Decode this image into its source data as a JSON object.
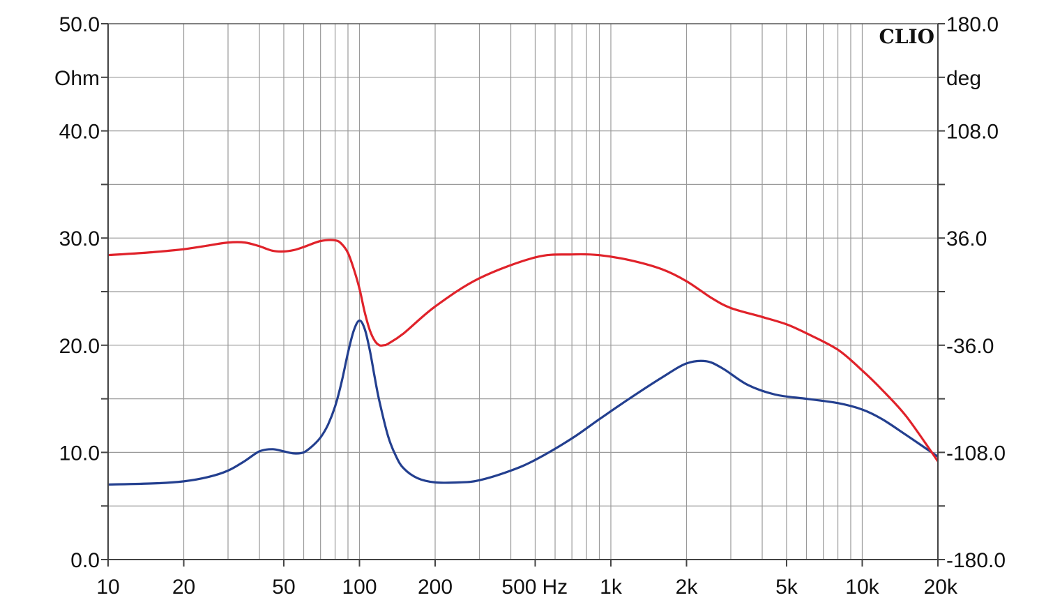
{
  "chart_data": {
    "type": "line",
    "brand": "CLIO",
    "x_scale": "log",
    "xlim": [
      10,
      20000
    ],
    "x_tick_labels": [
      {
        "value": 10,
        "label": "10"
      },
      {
        "value": 20,
        "label": "20"
      },
      {
        "value": 50,
        "label": "50"
      },
      {
        "value": 100,
        "label": "100"
      },
      {
        "value": 200,
        "label": "200"
      },
      {
        "value": 500,
        "label": "500"
      },
      {
        "value": 1000,
        "label": "1k"
      },
      {
        "value": 2000,
        "label": "2k"
      },
      {
        "value": 5000,
        "label": "5k"
      },
      {
        "value": 10000,
        "label": "10k"
      },
      {
        "value": 20000,
        "label": "20k"
      }
    ],
    "x_unit_label": "Hz",
    "y_left": {
      "unit": "Ohm",
      "ylim": [
        0,
        50
      ],
      "tick_labels": [
        {
          "value": 0,
          "label": "0.0"
        },
        {
          "value": 10,
          "label": "10.0"
        },
        {
          "value": 20,
          "label": "20.0"
        },
        {
          "value": 30,
          "label": "30.0"
        },
        {
          "value": 40,
          "label": "40.0"
        },
        {
          "value": 50,
          "label": "50.0"
        }
      ]
    },
    "y_right": {
      "unit": "deg",
      "ylim": [
        -180,
        180
      ],
      "tick_labels": [
        {
          "value": -180,
          "label": "-180.0"
        },
        {
          "value": -108,
          "label": "-108.0"
        },
        {
          "value": -36,
          "label": "-36.0"
        },
        {
          "value": 36,
          "label": "36.0"
        },
        {
          "value": 108,
          "label": "108.0"
        },
        {
          "value": 180,
          "label": "180.0"
        }
      ]
    },
    "grid": true,
    "colors": {
      "impedance": "#233f8f",
      "phase": "#e0222a",
      "grid": "#9a9a9a",
      "axes": "#444444"
    },
    "series": [
      {
        "key": "impedance",
        "axis": "left",
        "x": [
          10,
          15,
          20,
          25,
          30,
          35,
          40,
          45,
          50,
          55,
          60,
          65,
          70,
          75,
          80,
          85,
          90,
          95,
          100,
          105,
          110,
          115,
          120,
          130,
          140,
          150,
          170,
          200,
          250,
          300,
          400,
          500,
          700,
          900,
          1200,
          1600,
          2000,
          2400,
          2800,
          3500,
          4500,
          6000,
          8000,
          10000,
          12000,
          15000,
          20000
        ],
        "values": [
          7.0,
          7.1,
          7.3,
          7.7,
          8.3,
          9.2,
          10.1,
          10.3,
          10.1,
          9.9,
          10.0,
          10.6,
          11.4,
          12.6,
          14.3,
          16.6,
          19.3,
          21.4,
          22.3,
          21.5,
          19.5,
          17.0,
          14.8,
          11.5,
          9.6,
          8.5,
          7.6,
          7.2,
          7.2,
          7.4,
          8.3,
          9.3,
          11.3,
          13.1,
          15.1,
          17.0,
          18.3,
          18.5,
          17.8,
          16.3,
          15.4,
          15.0,
          14.6,
          14.0,
          13.1,
          11.6,
          9.6
        ]
      },
      {
        "key": "phase",
        "axis": "right",
        "x": [
          10,
          15,
          20,
          25,
          30,
          35,
          40,
          45,
          50,
          55,
          60,
          70,
          80,
          85,
          90,
          95,
          100,
          105,
          110,
          115,
          120,
          125,
          130,
          150,
          200,
          300,
          500,
          700,
          900,
          1200,
          1600,
          2000,
          2500,
          3000,
          4000,
          5000,
          6000,
          8000,
          10000,
          12000,
          15000,
          20000
        ],
        "values": [
          24.5,
          26.5,
          28.5,
          31,
          33,
          33,
          30.5,
          27.5,
          27.0,
          28.0,
          30.0,
          34.0,
          34.5,
          32,
          26,
          15,
          2,
          -14,
          -26,
          -33,
          -36,
          -36,
          -35,
          -28,
          -10,
          9,
          23,
          25,
          24.5,
          21,
          15,
          7,
          -4,
          -11,
          -17,
          -22,
          -28,
          -39,
          -53,
          -66,
          -84,
          -114
        ]
      }
    ]
  }
}
